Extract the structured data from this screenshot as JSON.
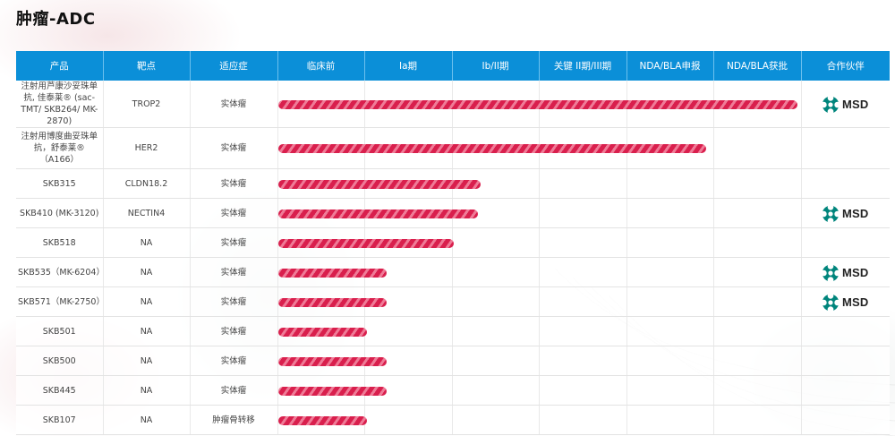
{
  "page": {
    "title": "肿瘤-ADC"
  },
  "colors": {
    "header_bg": "#0b8fd8",
    "bar": "#d91f4d",
    "bar_stripe": "#ef7b97",
    "msd_teal": "#00857c"
  },
  "table": {
    "headers": [
      "产品",
      "靶点",
      "适应症",
      "临床前",
      "Ia期",
      "Ib/II期",
      "关键 II期/III期",
      "NDA/BLA申报",
      "NDA/BLA获批",
      "合作伙伴"
    ],
    "rows": [
      {
        "product": "注射用芦康沙妥珠单抗, 佳泰莱® (sac-TMT/ SKB264/ MK-2870)",
        "target": "TROP2",
        "indication": "实体瘤",
        "stage_progress": 0.971,
        "partner": "MSD",
        "partner_icon": "msd-logo-icon"
      },
      {
        "product": "注射用博度曲妥珠单抗，舒泰莱® （A166）",
        "target": "HER2",
        "indication": "实体瘤",
        "stage_progress": 0.801,
        "partner": "",
        "partner_icon": ""
      },
      {
        "product": "SKB315",
        "target": "CLDN18.2",
        "indication": "实体瘤",
        "stage_progress": 0.379,
        "partner": "",
        "partner_icon": ""
      },
      {
        "product": "SKB410 (MK-3120)",
        "target": "NECTIN4",
        "indication": "实体瘤",
        "stage_progress": 0.374,
        "partner": "MSD",
        "partner_icon": "msd-logo-icon"
      },
      {
        "product": "SKB518",
        "target": "NA",
        "indication": "实体瘤",
        "stage_progress": 0.329,
        "partner": "",
        "partner_icon": ""
      },
      {
        "product": "SKB535（MK-6204）",
        "target": "NA",
        "indication": "实体瘤",
        "stage_progress": 0.203,
        "partner": "MSD",
        "partner_icon": "msd-logo-icon"
      },
      {
        "product": "SKB571（MK-2750）",
        "target": "NA",
        "indication": "实体瘤",
        "stage_progress": 0.203,
        "partner": "MSD",
        "partner_icon": "msd-logo-icon"
      },
      {
        "product": "SKB501",
        "target": "NA",
        "indication": "实体瘤",
        "stage_progress": 0.166,
        "partner": "",
        "partner_icon": ""
      },
      {
        "product": "SKB500",
        "target": "NA",
        "indication": "实体瘤",
        "stage_progress": 0.203,
        "partner": "",
        "partner_icon": ""
      },
      {
        "product": "SKB445",
        "target": "NA",
        "indication": "实体瘤",
        "stage_progress": 0.203,
        "partner": "",
        "partner_icon": ""
      },
      {
        "product": "SKB107",
        "target": "NA",
        "indication": "肿瘤骨转移",
        "stage_progress": 0.166,
        "partner": "",
        "partner_icon": ""
      }
    ]
  }
}
